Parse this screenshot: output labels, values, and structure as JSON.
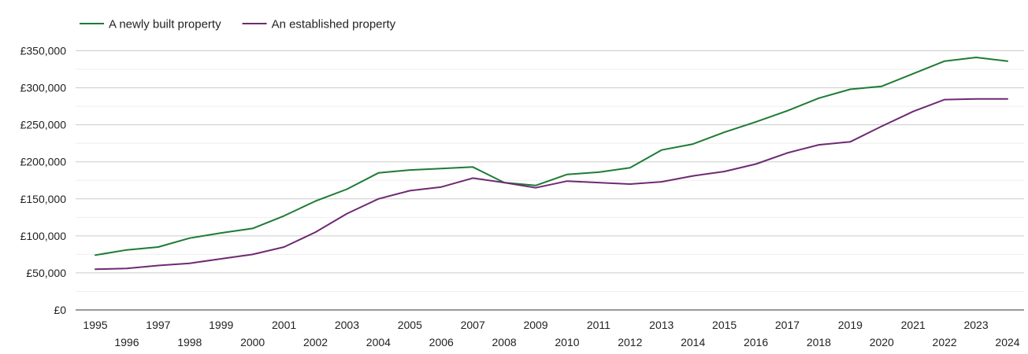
{
  "chart_data": {
    "type": "line",
    "x": [
      1995,
      1996,
      1997,
      1998,
      1999,
      2000,
      2001,
      2002,
      2003,
      2004,
      2005,
      2006,
      2007,
      2008,
      2009,
      2010,
      2011,
      2012,
      2013,
      2014,
      2015,
      2016,
      2017,
      2018,
      2019,
      2020,
      2021,
      2022,
      2023,
      2024
    ],
    "series": [
      {
        "name": "A newly built property",
        "color": "#1e7b34",
        "values": [
          74000,
          81000,
          85000,
          97000,
          104000,
          110000,
          127000,
          147000,
          163000,
          185000,
          189000,
          191000,
          193000,
          172000,
          168000,
          183000,
          186000,
          192000,
          216000,
          224000,
          240000,
          254000,
          269000,
          286000,
          298000,
          302000,
          319000,
          336000,
          341000,
          336000
        ]
      },
      {
        "name": "An established property",
        "color": "#6e2a73",
        "values": [
          55000,
          56000,
          60000,
          63000,
          69000,
          75000,
          85000,
          105000,
          130000,
          150000,
          161000,
          166000,
          178000,
          172000,
          165000,
          174000,
          172000,
          170000,
          173000,
          181000,
          187000,
          197000,
          212000,
          223000,
          227000,
          248000,
          268000,
          284000,
          285000,
          285000
        ]
      }
    ],
    "y_ticks": [
      "£0",
      "£50,000",
      "£100,000",
      "£150,000",
      "£200,000",
      "£250,000",
      "£300,000",
      "£350,000"
    ],
    "x_tick_labels": [
      "1995",
      "1996",
      "1997",
      "1998",
      "1999",
      "2000",
      "2001",
      "2002",
      "2003",
      "2004",
      "2005",
      "2006",
      "2007",
      "2008",
      "2009",
      "2010",
      "2011",
      "2012",
      "2013",
      "2014",
      "2015",
      "2016",
      "2017",
      "2018",
      "2019",
      "2020",
      "2021",
      "2022",
      "2023",
      "2024"
    ],
    "ylim": [
      0,
      350000
    ],
    "xlim": [
      1995,
      2024
    ],
    "grid": true,
    "legend_position": "top-left",
    "title": "",
    "xlabel": "",
    "ylabel": ""
  }
}
